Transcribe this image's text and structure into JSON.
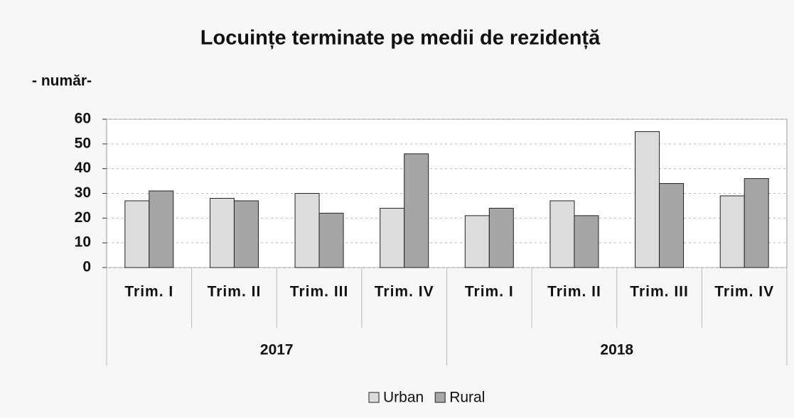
{
  "chart_data": {
    "type": "bar",
    "title": "Locuințe terminate pe medii de rezidență",
    "subtitle": "- număr-",
    "categories": [
      "Trim. I",
      "Trim. II",
      "Trim. III",
      "Trim. IV",
      "Trim. I",
      "Trim. II",
      "Trim. III",
      "Trim. IV"
    ],
    "groups": [
      "2017",
      "2018"
    ],
    "series": [
      {
        "name": "Urban",
        "color": "#dcdcdc",
        "values": [
          27,
          28,
          30,
          24,
          21,
          27,
          55,
          29
        ]
      },
      {
        "name": "Rural",
        "color": "#a6a6a6",
        "values": [
          31,
          27,
          22,
          46,
          24,
          21,
          34,
          36
        ]
      }
    ],
    "ylim": [
      0,
      60
    ],
    "yticks": [
      0,
      10,
      20,
      30,
      40,
      50,
      60
    ],
    "grid": true,
    "legend": "bottom"
  }
}
